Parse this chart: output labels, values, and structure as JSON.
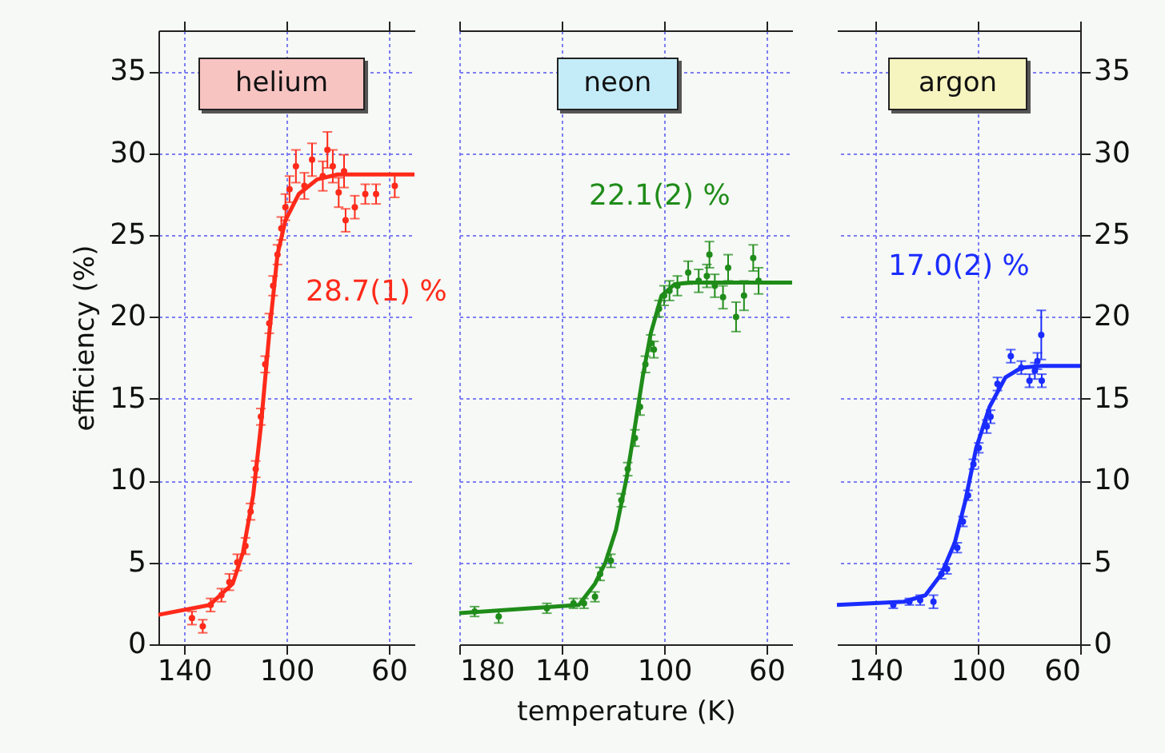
{
  "chart_data": [
    {
      "type": "scatter",
      "title": "helium",
      "ylabel": "efficiency (%)",
      "xlim": [
        150,
        50
      ],
      "xticks": [
        140,
        100,
        60
      ],
      "ylim": [
        0,
        37.5
      ],
      "yticks": [
        0,
        5,
        10,
        15,
        20,
        25,
        30,
        35
      ],
      "grid": true,
      "annotations": [
        "28.7(1) %"
      ],
      "series": [
        {
          "type": "scatter",
          "marker": "circle",
          "color": "#ff2a1a",
          "x": [
            136.9,
            132.7,
            129.6,
            125.4,
            122.3,
            119.2,
            116,
            114,
            112,
            110,
            108.3,
            106.7,
            105.2,
            103.5,
            102,
            100.4,
            98.8,
            96.3,
            93,
            90,
            85.8,
            84,
            81.9,
            79.6,
            77.5,
            76.9,
            73.3,
            69.2,
            65,
            57.7
          ],
          "values": [
            1.6,
            1.1,
            2.4,
            3.0,
            3.8,
            5.0,
            6.0,
            8.1,
            10.7,
            13.9,
            17.1,
            19.6,
            21.9,
            23.8,
            25.4,
            26.7,
            27.8,
            29.2,
            28.0,
            29.6,
            28.6,
            30.2,
            29.2,
            27.6,
            28.9,
            25.9,
            26.7,
            27.5,
            27.5,
            28.0
          ],
          "errors": [
            0.4,
            0.4,
            0.4,
            0.4,
            0.5,
            0.5,
            0.5,
            0.5,
            0.5,
            0.5,
            0.5,
            0.6,
            0.6,
            0.6,
            0.7,
            0.8,
            0.8,
            1.0,
            0.8,
            1.0,
            0.9,
            1.1,
            1.0,
            0.9,
            1.0,
            0.7,
            0.7,
            0.6,
            0.6,
            0.7
          ]
        },
        {
          "type": "line",
          "color": "#ff2a1a",
          "x": [
            150,
            130,
            121,
            117,
            113,
            110,
            106.7,
            103.5,
            100.4,
            95.2,
            88,
            80,
            50
          ],
          "values": [
            1.8,
            2.4,
            3.7,
            5.6,
            9.1,
            13.3,
            19.0,
            23.8,
            25.9,
            27.5,
            28.4,
            28.7,
            28.7
          ]
        }
      ]
    },
    {
      "type": "scatter",
      "title": "neon",
      "xlabel": "temperature (K)",
      "xlim": [
        180,
        50
      ],
      "xticks": [
        180,
        140,
        100,
        60
      ],
      "ylim": [
        0,
        37.5
      ],
      "yticks": [
        0,
        5,
        10,
        15,
        20,
        25,
        30,
        35
      ],
      "grid": true,
      "tick_labels": "x",
      "annotations": [
        "22.1(2) %"
      ],
      "series": [
        {
          "type": "scatter",
          "marker": "circle",
          "color": "#1f8c1a",
          "x": [
            174,
            164.6,
            145.8,
            135.4,
            131.3,
            127,
            125,
            120.8,
            116.7,
            114.2,
            111.4,
            109.4,
            107.3,
            105.2,
            104,
            102,
            100,
            97.9,
            94.8,
            90.6,
            86.5,
            83.3,
            82.3,
            80.2,
            77,
            75,
            71.9,
            68.8,
            65.2,
            63.1
          ],
          "values": [
            2.0,
            1.7,
            2.2,
            2.5,
            2.5,
            2.9,
            4.3,
            5.1,
            8.8,
            10.7,
            12.6,
            14.5,
            17.1,
            18.4,
            18.0,
            20.5,
            21.3,
            21.6,
            21.9,
            22.7,
            22.2,
            22.5,
            23.8,
            21.9,
            21.2,
            23.0,
            20.0,
            21.3,
            23.6,
            22.2
          ],
          "errors": [
            0.3,
            0.4,
            0.3,
            0.3,
            0.3,
            0.3,
            0.4,
            0.4,
            0.4,
            0.4,
            0.5,
            0.5,
            0.5,
            0.5,
            0.5,
            0.5,
            0.6,
            0.6,
            0.6,
            0.7,
            0.7,
            0.7,
            0.8,
            0.7,
            0.7,
            0.8,
            0.9,
            0.9,
            0.8,
            0.8
          ]
        },
        {
          "type": "line",
          "color": "#1f8c1a",
          "x": [
            180,
            133.3,
            127,
            122.9,
            118.8,
            114.6,
            111.4,
            108.3,
            105.2,
            101,
            95.8,
            90,
            50
          ],
          "values": [
            1.9,
            2.4,
            3.7,
            5.0,
            7.0,
            10.2,
            13.3,
            16.4,
            19.0,
            21.3,
            22.0,
            22.1,
            22.1
          ]
        }
      ]
    },
    {
      "type": "scatter",
      "title": "argon",
      "xlim": [
        155,
        60
      ],
      "xticks": [
        140,
        100,
        60
      ],
      "ylim": [
        0,
        37.5
      ],
      "yticks": [
        0,
        5,
        10,
        15,
        20,
        25,
        30,
        35
      ],
      "grid": true,
      "annotations": [
        "17.0(2) %"
      ],
      "series": [
        {
          "type": "scatter",
          "marker": "circle",
          "color": "#1a2cff",
          "x": [
            133,
            126.7,
            122.5,
            117.3,
            114.2,
            112,
            108,
            105.8,
            103.8,
            101.7,
            99.6,
            96.5,
            95,
            92.3,
            87.1,
            83,
            79.8,
            77.7,
            76.7,
            75.2,
            75
          ],
          "values": [
            2.4,
            2.6,
            2.7,
            2.6,
            4.3,
            4.6,
            5.9,
            7.5,
            9.1,
            11.0,
            12.0,
            13.3,
            13.9,
            15.9,
            17.6,
            16.9,
            16.1,
            16.7,
            17.3,
            18.9,
            16.1
          ],
          "errors": [
            0.2,
            0.2,
            0.3,
            0.4,
            0.3,
            0.3,
            0.3,
            0.3,
            0.3,
            0.3,
            0.3,
            0.4,
            0.4,
            0.4,
            0.4,
            0.4,
            0.4,
            0.5,
            0.5,
            1.5,
            0.4
          ]
        },
        {
          "type": "line",
          "color": "#1a2cff",
          "x": [
            155,
            128.8,
            120.4,
            114.2,
            109,
            104.8,
            100.6,
            95.4,
            89.2,
            82.9,
            75,
            60
          ],
          "values": [
            2.4,
            2.6,
            3.0,
            4.3,
            6.2,
            8.8,
            12.0,
            14.5,
            16.3,
            16.9,
            17.0,
            17.0
          ]
        }
      ]
    }
  ]
}
